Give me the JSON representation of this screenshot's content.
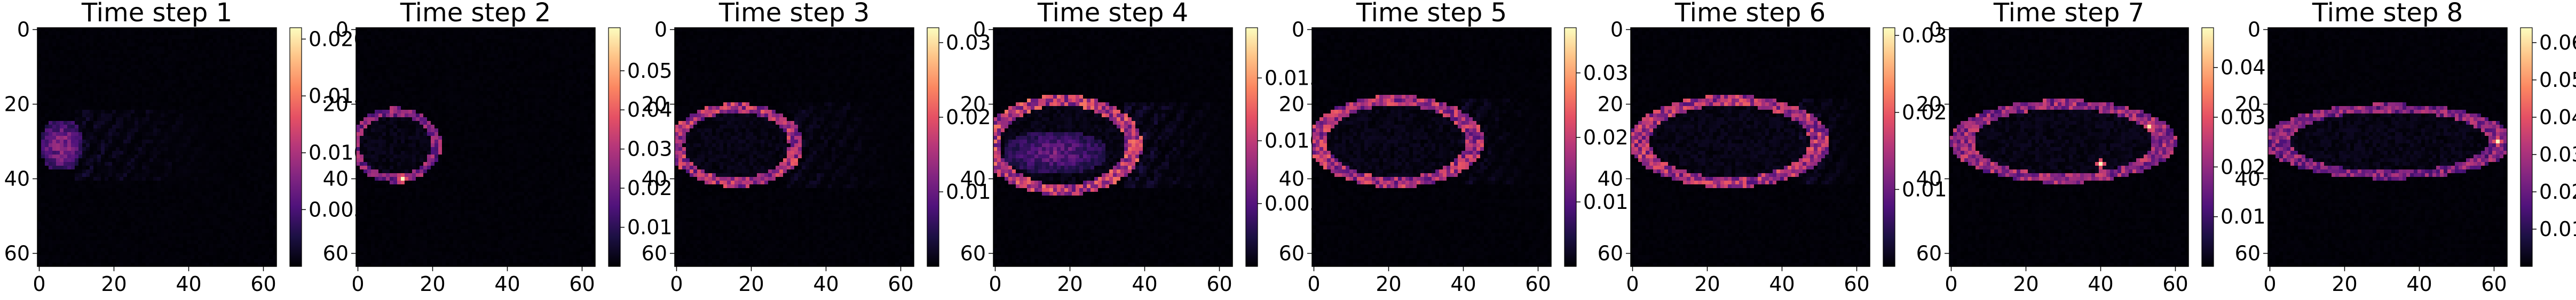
{
  "figure": {
    "background": "#ffffff"
  },
  "colormap": {
    "name": "magma",
    "stops": [
      "#000004",
      "#1c1044",
      "#4f127b",
      "#812581",
      "#b5367a",
      "#e55064",
      "#fb8761",
      "#fec287",
      "#fcfdbf"
    ]
  },
  "chart_data": [
    {
      "type": "heatmap",
      "title": "Time step 1",
      "xticks": [
        0,
        20,
        40,
        60
      ],
      "yticks": [
        0,
        20,
        40,
        60
      ],
      "grid_size": [
        64,
        64
      ],
      "colorbar": {
        "min": 0.0,
        "max": 0.021,
        "ticks": [
          0.005,
          0.01,
          0.015,
          0.02
        ],
        "labels": [
          "0.005",
          "0.010",
          "0.015",
          "0.020"
        ]
      },
      "features": [
        {
          "kind": "blob",
          "cx": 6,
          "cy": 31,
          "rx": 6,
          "ry": 7,
          "value": 0.55
        },
        {
          "kind": "wisps",
          "x0": 10,
          "x1": 50,
          "cy": 31,
          "spread": 10,
          "value": 0.12
        }
      ]
    },
    {
      "type": "heatmap",
      "title": "Time step 2",
      "xticks": [
        0,
        20,
        40,
        60
      ],
      "yticks": [
        0,
        20,
        40,
        60
      ],
      "grid_size": [
        64,
        64
      ],
      "colorbar": {
        "min": 0.0,
        "max": 0.061,
        "ticks": [
          0.01,
          0.02,
          0.03,
          0.04,
          0.05
        ],
        "labels": [
          "0.01",
          "0.02",
          "0.03",
          "0.04",
          "0.05"
        ]
      },
      "features": [
        {
          "kind": "ring",
          "cx": 10,
          "cy": 31,
          "rx": 11,
          "ry": 9,
          "value": 0.45
        },
        {
          "kind": "hotspot",
          "x": 12,
          "y": 40,
          "value": 1.0
        }
      ]
    },
    {
      "type": "heatmap",
      "title": "Time step 3",
      "xticks": [
        0,
        20,
        40,
        60
      ],
      "yticks": [
        0,
        20,
        40,
        60
      ],
      "grid_size": [
        64,
        64
      ],
      "colorbar": {
        "min": 0.0,
        "max": 0.032,
        "ticks": [
          0.01,
          0.02,
          0.03
        ],
        "labels": [
          "0.01",
          "0.02",
          "0.03"
        ]
      },
      "features": [
        {
          "kind": "ring",
          "cx": 16,
          "cy": 31,
          "rx": 16,
          "ry": 10,
          "value": 0.55
        },
        {
          "kind": "wisps",
          "x0": 30,
          "x1": 62,
          "cy": 31,
          "spread": 12,
          "value": 0.1
        }
      ]
    },
    {
      "type": "heatmap",
      "title": "Time step 4",
      "xticks": [
        0,
        20,
        40,
        60
      ],
      "yticks": [
        0,
        20,
        40,
        60
      ],
      "grid_size": [
        64,
        64
      ],
      "colorbar": {
        "min": 0.0,
        "max": 0.019,
        "ticks": [
          0.005,
          0.01,
          0.015
        ],
        "labels": [
          "0.005",
          "0.010",
          "0.015"
        ]
      },
      "features": [
        {
          "kind": "ring",
          "cx": 18,
          "cy": 31,
          "rx": 19,
          "ry": 12,
          "value": 0.6
        },
        {
          "kind": "blob",
          "cx": 16,
          "cy": 33,
          "rx": 14,
          "ry": 6,
          "value": 0.4
        },
        {
          "kind": "wisps",
          "x0": 35,
          "x1": 63,
          "cy": 31,
          "spread": 12,
          "value": 0.15
        }
      ]
    },
    {
      "type": "heatmap",
      "title": "Time step 5",
      "xticks": [
        0,
        20,
        40,
        60
      ],
      "yticks": [
        0,
        20,
        40,
        60
      ],
      "grid_size": [
        64,
        64
      ],
      "colorbar": {
        "min": 0.0,
        "max": 0.037,
        "ticks": [
          0.01,
          0.02,
          0.03
        ],
        "labels": [
          "0.01",
          "0.02",
          "0.03"
        ]
      },
      "features": [
        {
          "kind": "ring",
          "cx": 22,
          "cy": 30,
          "rx": 21,
          "ry": 11,
          "value": 0.55
        },
        {
          "kind": "wisps",
          "x0": 40,
          "x1": 63,
          "cy": 30,
          "spread": 12,
          "value": 0.1
        }
      ]
    },
    {
      "type": "heatmap",
      "title": "Time step 6",
      "xticks": [
        0,
        20,
        40,
        60
      ],
      "yticks": [
        0,
        20,
        40,
        60
      ],
      "grid_size": [
        64,
        64
      ],
      "colorbar": {
        "min": 0.0,
        "max": 0.031,
        "ticks": [
          0.01,
          0.02,
          0.03
        ],
        "labels": [
          "0.01",
          "0.02",
          "0.03"
        ]
      },
      "features": [
        {
          "kind": "ring",
          "cx": 26,
          "cy": 30,
          "rx": 24,
          "ry": 11,
          "value": 0.55
        },
        {
          "kind": "wisps",
          "x0": 45,
          "x1": 63,
          "cy": 30,
          "spread": 12,
          "value": 0.12
        }
      ]
    },
    {
      "type": "heatmap",
      "title": "Time step 7",
      "xticks": [
        0,
        20,
        40,
        60
      ],
      "yticks": [
        0,
        20,
        40,
        60
      ],
      "grid_size": [
        64,
        64
      ],
      "colorbar": {
        "min": 0.0,
        "max": 0.048,
        "ticks": [
          0.01,
          0.02,
          0.03,
          0.04
        ],
        "labels": [
          "0.01",
          "0.02",
          "0.03",
          "0.04"
        ]
      },
      "features": [
        {
          "kind": "ring",
          "cx": 30,
          "cy": 30,
          "rx": 27,
          "ry": 10,
          "value": 0.5
        },
        {
          "kind": "hotspot",
          "x": 53,
          "y": 26,
          "value": 0.95
        },
        {
          "kind": "hotspot",
          "x": 40,
          "y": 36,
          "value": 1.0
        }
      ]
    },
    {
      "type": "heatmap",
      "title": "Time step 8",
      "xticks": [
        0,
        20,
        40,
        60
      ],
      "yticks": [
        0,
        20,
        40,
        60
      ],
      "grid_size": [
        64,
        64
      ],
      "colorbar": {
        "min": 0.0,
        "max": 0.064,
        "ticks": [
          0.01,
          0.02,
          0.03,
          0.04,
          0.05,
          0.06
        ],
        "labels": [
          "0.01",
          "0.02",
          "0.03",
          "0.04",
          "0.05",
          "0.06"
        ]
      },
      "features": [
        {
          "kind": "ring",
          "cx": 32,
          "cy": 30,
          "rx": 30,
          "ry": 9,
          "value": 0.45
        },
        {
          "kind": "hotspot",
          "x": 61,
          "y": 30,
          "value": 1.0
        }
      ]
    }
  ]
}
